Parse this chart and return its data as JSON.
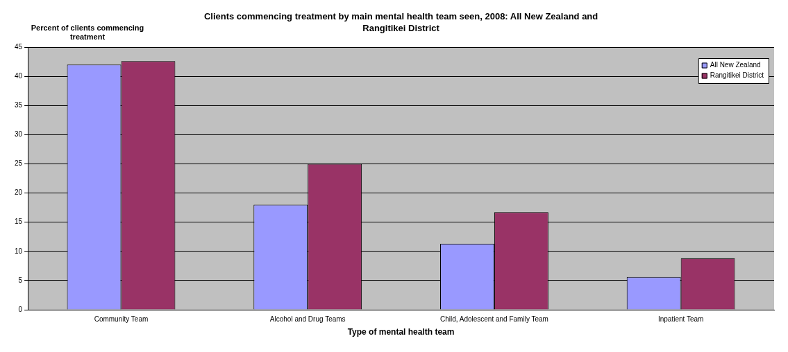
{
  "chart_data": {
    "type": "bar",
    "title": "Clients commencing treatment by main mental health team seen, 2008: All New Zealand and Rangitikei District",
    "xlabel": "Type of mental health team",
    "ylabel": "Percent of clients commencing treatment",
    "categories": [
      "Community Team",
      "Alcohol and Drug Teams",
      "Child, Adolescent and Family Team",
      "Inpatient Team"
    ],
    "series": [
      {
        "name": "All New Zealand",
        "color": "#9999ff",
        "values": [
          42.0,
          18.0,
          11.3,
          5.6
        ]
      },
      {
        "name": "Rangitikei District",
        "color": "#993366",
        "values": [
          42.6,
          25.0,
          16.7,
          8.8
        ]
      }
    ],
    "ylim": [
      0,
      45
    ],
    "yticks": [
      0,
      5,
      10,
      15,
      20,
      25,
      30,
      35,
      40,
      45
    ],
    "grid": "y",
    "legend": "top right"
  }
}
